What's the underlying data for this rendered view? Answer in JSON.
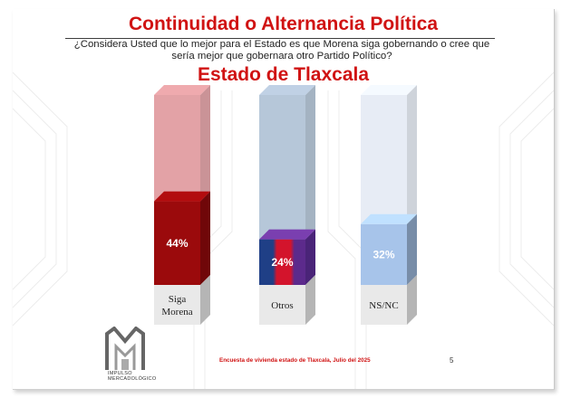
{
  "slide": {
    "title": "Continuidad o Alternancia Política",
    "question": "¿Considera Usted que lo mejor para el Estado es que Morena siga gobernando o cree que sería mejor que gobernara otro Partido Político?",
    "subtitle": "Estado de Tlaxcala",
    "logo_text_1": "IMPULSO",
    "logo_text_2": "MERCADOLÓGICO",
    "footnote": "Encuesta de vivienda estado de Tlaxcala, Julio   del 2025",
    "page_number": "5"
  },
  "chart_data": {
    "type": "bar",
    "title": "Estado de Tlaxcala",
    "categories": [
      "Siga Morena",
      "Otros",
      "NS/NC"
    ],
    "values": [
      44,
      24,
      32
    ],
    "value_labels": [
      "44%",
      "24%",
      "32%"
    ],
    "unit": "%",
    "ylim": [
      0,
      100
    ],
    "grid": false,
    "legend": "none",
    "colors": {
      "siga_morena": "#9b0a0c",
      "siga_morena_ghost": "#d98388",
      "otros": [
        "#1f3f86",
        "#d3142c",
        "#5c2a8c"
      ],
      "otros_ghost": "#9eb4cc",
      "ns_nc": "#a7c4ea",
      "ns_nc_ghost": "#dfe6f2",
      "label_box": "#e9e9e9"
    }
  }
}
